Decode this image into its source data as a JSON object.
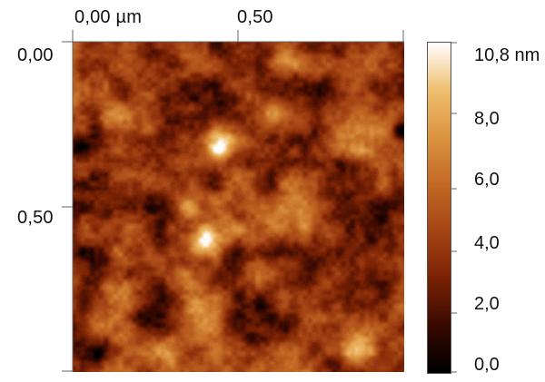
{
  "scan": {
    "x_axis": {
      "tick_labels": [
        "0,00 µm",
        "0,50"
      ],
      "tick_values": [
        0.0,
        0.5
      ],
      "range": [
        0.0,
        1.0
      ],
      "unit": "µm"
    },
    "y_axis": {
      "tick_labels": [
        "0,00",
        "0,50"
      ],
      "tick_values": [
        0.0,
        0.5
      ],
      "range": [
        0.0,
        1.0
      ],
      "unit": "µm"
    }
  },
  "scale_bar": {
    "labels": [
      "10,8 nm",
      "8,0",
      "6,0",
      "4,0",
      "2,0",
      "0,0"
    ],
    "max": 10.8,
    "min": 0.0,
    "unit": "nm",
    "tick_values": [
      10.8,
      8.0,
      6.0,
      4.0,
      2.0,
      0.0
    ],
    "colors": [
      "#000000",
      "#3a0a02",
      "#7a2204",
      "#a54515",
      "#c26a25",
      "#dc9440",
      "#f0c070",
      "#ffffff"
    ]
  }
}
